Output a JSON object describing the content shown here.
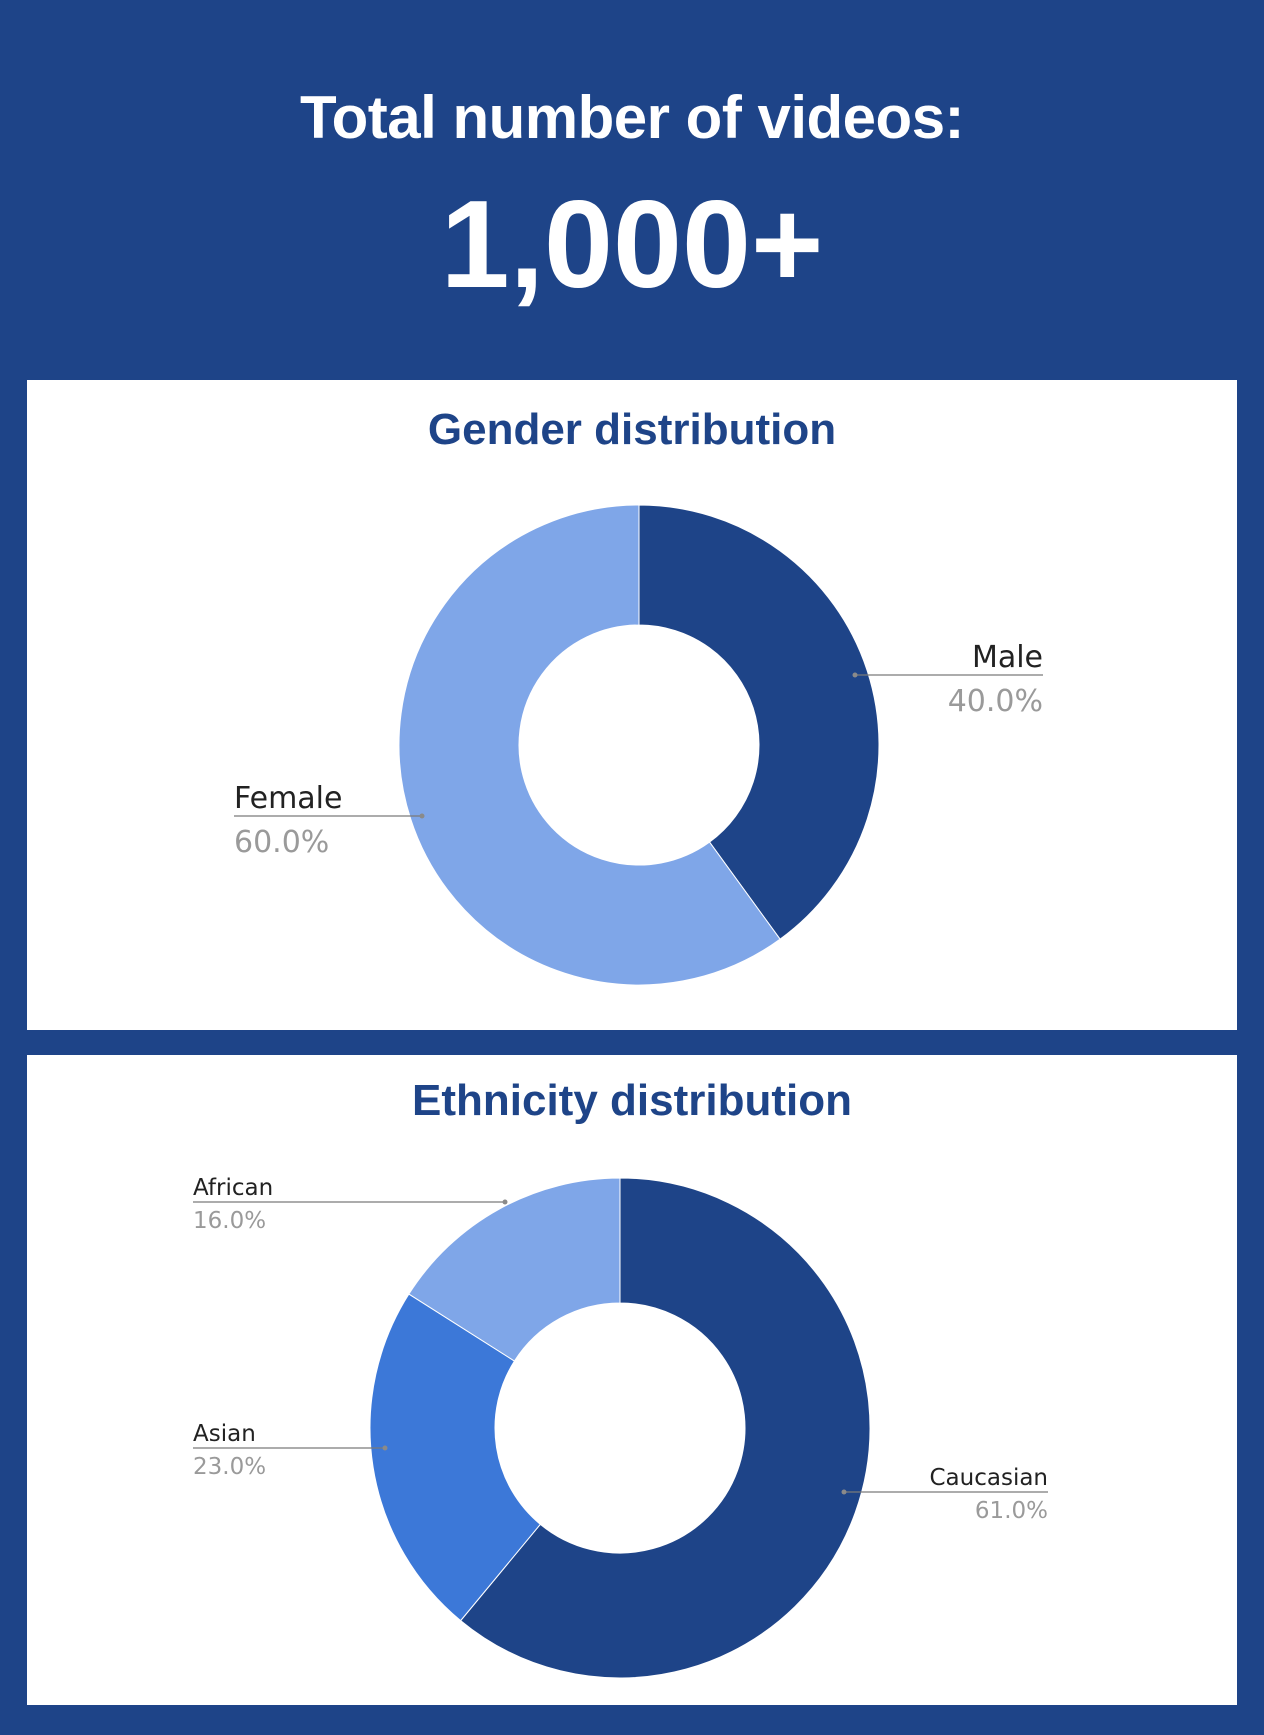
{
  "header": {
    "title": "Total number of videos:",
    "total": "1,000+"
  },
  "colors": {
    "background": "#1e4488",
    "dark_blue": "#1e4488",
    "medium_blue": "#3c78d8",
    "light_blue": "#7fa6e8",
    "panel": "#ffffff",
    "label": "#222222",
    "percent": "#9a9a9a"
  },
  "chart_data": [
    {
      "type": "pie",
      "style": "donut",
      "title": "Gender distribution",
      "slices": [
        {
          "label": "Male",
          "value": 40.0,
          "display": "40.0%",
          "color": "#1e4488"
        },
        {
          "label": "Female",
          "value": 60.0,
          "display": "60.0%",
          "color": "#7fa6e8"
        }
      ]
    },
    {
      "type": "pie",
      "style": "donut",
      "title": "Ethnicity distribution",
      "slices": [
        {
          "label": "Caucasian",
          "value": 61.0,
          "display": "61.0%",
          "color": "#1e4488"
        },
        {
          "label": "Asian",
          "value": 23.0,
          "display": "23.0%",
          "color": "#3c78d8"
        },
        {
          "label": "African",
          "value": 16.0,
          "display": "16.0%",
          "color": "#7fa6e8"
        }
      ]
    }
  ]
}
